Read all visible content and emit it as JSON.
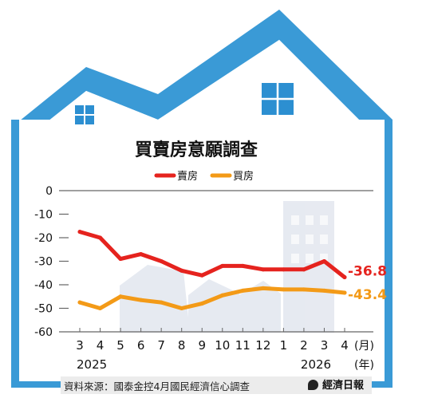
{
  "source_label": "資料來源：國泰金控4月國民經濟信心調查",
  "brand": "經濟日報",
  "colors": {
    "frame": "#3a9ad6",
    "sell": "#e5231e",
    "buy": "#f39a17",
    "window": "#2c8fd1"
  },
  "chart_data": {
    "type": "line",
    "title": "買賣房意願調查",
    "categories": [
      "3",
      "4",
      "5",
      "6",
      "7",
      "8",
      "9",
      "10",
      "11",
      "12",
      "1",
      "2",
      "3",
      "4"
    ],
    "x_unit": "(月)",
    "year_unit": "(年)",
    "year_labels": [
      {
        "label": "2025",
        "index": 0
      },
      {
        "label": "2026",
        "index": 11
      }
    ],
    "ylim": [
      -60,
      0
    ],
    "yticks": [
      0,
      -10,
      -20,
      -30,
      -40,
      -50,
      -60
    ],
    "ytick_labels": [
      "0",
      "-10",
      "-20",
      "-30",
      "-40",
      "-50",
      "-60"
    ],
    "series": [
      {
        "name": "賣房",
        "color": "#e5231e",
        "values": [
          -17.5,
          -20,
          -29,
          -27,
          -30,
          -34,
          -36,
          -32,
          -32,
          -33.5,
          -33.5,
          -33.5,
          -30,
          -36.8
        ],
        "end_label": "-36.8"
      },
      {
        "name": "買房",
        "color": "#f39a17",
        "values": [
          -47.5,
          -50,
          -45,
          -46.5,
          -47.5,
          -50,
          -48,
          -44.5,
          -42.5,
          -41.5,
          -42,
          -42,
          -42.5,
          -43.4
        ],
        "end_label": "-43.4"
      }
    ],
    "legend_position": "top"
  }
}
